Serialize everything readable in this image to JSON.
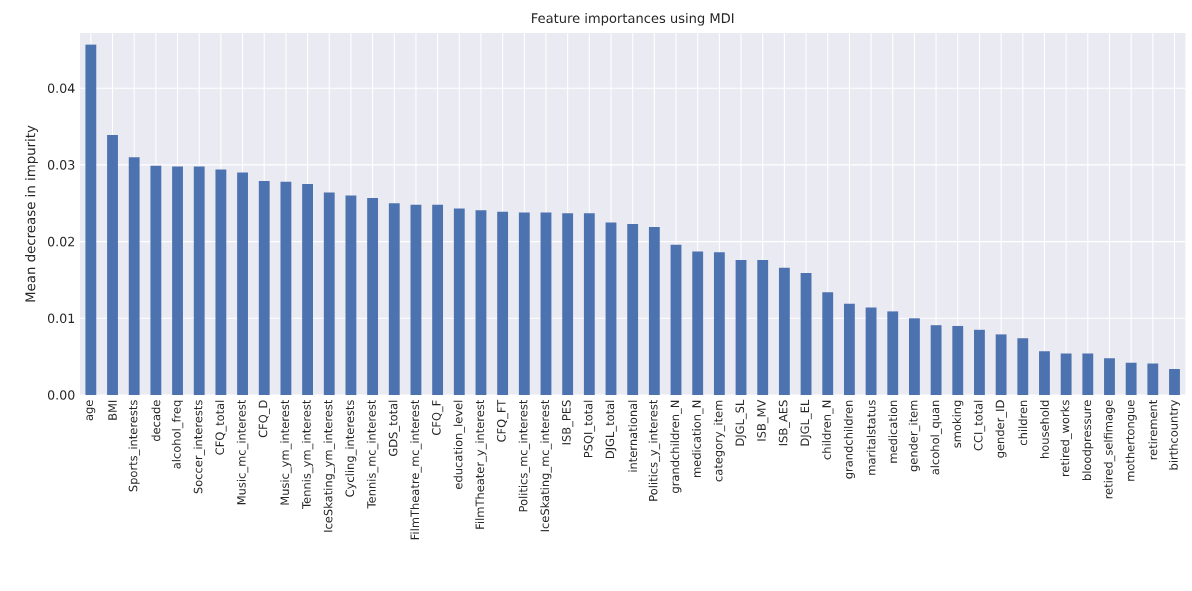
{
  "chart_data": {
    "type": "bar",
    "title": "Feature importances using MDI",
    "ylabel": "Mean decrease in impurity",
    "categories": [
      "age",
      "BMI",
      "Sports_interests",
      "decade",
      "alcohol_freq",
      "Soccer_interests",
      "CFQ_total",
      "Music_mc_interest",
      "CFQ_D",
      "Music_ym_interest",
      "Tennis_ym_interest",
      "IceSkating_ym_interest",
      "Cycling_interests",
      "Tennis_mc_interest",
      "GDS_total",
      "FilmTheatre_mc_interest",
      "CFQ_F",
      "education_level",
      "FilmTheater_y_interest",
      "CFQ_FT",
      "Politics_mc_interest",
      "IceSkating_mc_interest",
      "ISB_PES",
      "PSQI_total",
      "DJGL_total",
      "international",
      "Politics_y_interest",
      "grandchildren_N",
      "medication_N",
      "category_item",
      "DJGL_SL",
      "ISB_MV",
      "ISB_AES",
      "DJGL_EL",
      "children_N",
      "grandchildren",
      "maritalstatus",
      "medication",
      "gender_item",
      "alcohol_quan",
      "smoking",
      "CCI_total",
      "gender_ID",
      "children",
      "household",
      "retired_works",
      "bloodpressure",
      "retired_selfimage",
      "mothertongue",
      "retirement",
      "birthcountry"
    ],
    "values": [
      0.0457,
      0.0339,
      0.031,
      0.0299,
      0.0298,
      0.0298,
      0.0294,
      0.029,
      0.0279,
      0.0278,
      0.0275,
      0.0264,
      0.026,
      0.0257,
      0.025,
      0.0248,
      0.0248,
      0.0243,
      0.0241,
      0.0239,
      0.0238,
      0.0238,
      0.0237,
      0.0237,
      0.0225,
      0.0223,
      0.0219,
      0.0196,
      0.0187,
      0.0186,
      0.0176,
      0.0176,
      0.0166,
      0.0159,
      0.0134,
      0.0119,
      0.0114,
      0.0109,
      0.01,
      0.0091,
      0.009,
      0.0085,
      0.0079,
      0.0074,
      0.0057,
      0.0054,
      0.0054,
      0.0048,
      0.0042,
      0.0041,
      0.0034
    ],
    "color": "#4c72b0",
    "ylim": [
      0,
      0.0472
    ],
    "yticks": [
      {
        "value": 0,
        "label": "0.00"
      },
      {
        "value": 0.01,
        "label": "0.01"
      },
      {
        "value": 0.02,
        "label": "0.02"
      },
      {
        "value": 0.03,
        "label": "0.03"
      },
      {
        "value": 0.04,
        "label": "0.04"
      }
    ],
    "grid": true
  }
}
